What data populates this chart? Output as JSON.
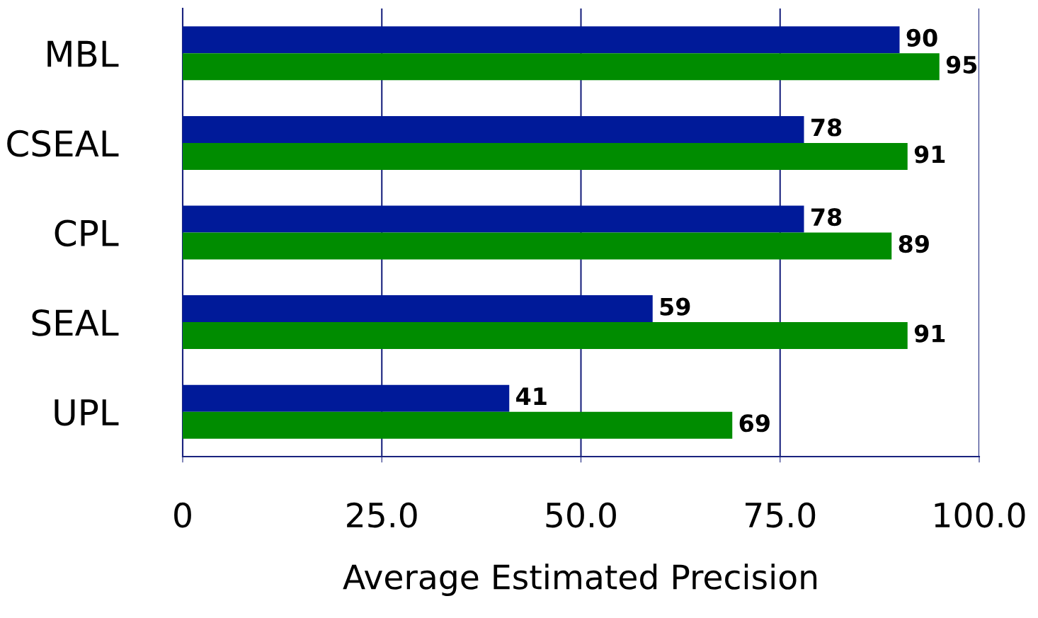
{
  "chart_data": {
    "type": "bar",
    "orientation": "horizontal",
    "xlabel": "Average Estimated Precision",
    "categories": [
      "MBL",
      "CSEAL",
      "CPL",
      "SEAL",
      "UPL"
    ],
    "series": [
      {
        "color": "#001a99",
        "values": [
          90,
          78,
          78,
          59,
          41
        ]
      },
      {
        "color": "#008c00",
        "values": [
          95,
          91,
          89,
          91,
          69
        ]
      }
    ],
    "xlim": [
      0,
      100
    ],
    "xticks": [
      0,
      {
        "value": 25,
        "label": "25.0"
      },
      {
        "value": 50,
        "label": "50.0"
      },
      {
        "value": 75,
        "label": "75.0"
      },
      {
        "value": 100,
        "label": "100.0"
      }
    ],
    "grid": "x",
    "data_labels": true
  }
}
